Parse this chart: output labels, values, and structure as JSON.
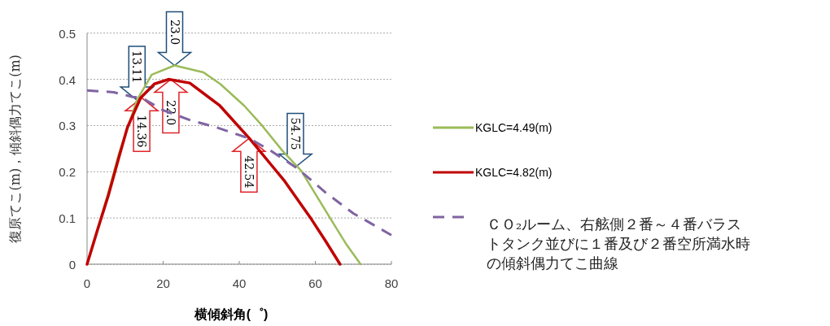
{
  "chart_data": {
    "type": "line",
    "xlabel": "横傾斜角(゜)",
    "ylabel": "復原てこ(m)，傾斜偶力てこ(m)",
    "xlim": [
      0,
      80
    ],
    "xticks": [
      0,
      20,
      40,
      60,
      80
    ],
    "ylim": [
      0,
      0.5
    ],
    "yticks": [
      0,
      0.1,
      0.2,
      0.3,
      0.4,
      0.5
    ],
    "grid": "y",
    "legend": "right",
    "series": [
      {
        "name": "KGLC=4.49(m)",
        "color": "#9bbb59",
        "line_style": "solid",
        "x": [
          0,
          5.6,
          8.4,
          11.3,
          13.1,
          17,
          23,
          30.6,
          35,
          41.3,
          46,
          51.3,
          56.3,
          64.1,
          68,
          71.9
        ],
        "values": [
          0,
          0.155,
          0.24,
          0.31,
          0.355,
          0.41,
          0.43,
          0.415,
          0.39,
          0.343,
          0.3,
          0.246,
          0.202,
          0.097,
          0.045,
          0
        ]
      },
      {
        "name": "KGLC=4.82(m)",
        "color": "#c00000",
        "line_style": "solid",
        "x": [
          0,
          2.7,
          5.6,
          8.4,
          10.6,
          14.1,
          17.7,
          21.4,
          27,
          34.9,
          42.7,
          48.4,
          52,
          59,
          62.7,
          66.5
        ],
        "values": [
          0,
          0.073,
          0.149,
          0.232,
          0.296,
          0.36,
          0.39,
          0.4,
          0.392,
          0.343,
          0.272,
          0.215,
          0.179,
          0.097,
          0.05,
          0
        ]
      },
      {
        "name": "ＣＯ₂ルーム、右舷側２番～４番バラストタンク並びに１番及び２番空所満水時の傾斜偶力てこ曲線",
        "color": "#8064a2",
        "line_style": "dashed",
        "x": [
          0,
          7,
          12,
          14.4,
          20,
          27,
          34,
          42.7,
          48.4,
          55.5,
          62.7,
          70,
          80
        ],
        "values": [
          0.376,
          0.372,
          0.362,
          0.36,
          0.333,
          0.312,
          0.296,
          0.272,
          0.245,
          0.206,
          0.155,
          0.11,
          0.063
        ]
      }
    ],
    "annotations": [
      {
        "text": "13.11",
        "x": 13.11,
        "y": 0.355
      },
      {
        "text": "14.36",
        "x": 14.36,
        "y": 0.36
      },
      {
        "text": "22.0",
        "x": 22,
        "y": 0.4
      },
      {
        "text": "23.0",
        "x": 23,
        "y": 0.43
      },
      {
        "text": "42.54",
        "x": 42.54,
        "y": 0.272
      },
      {
        "text": "54.75",
        "x": 54.75,
        "y": 0.21
      }
    ]
  }
}
